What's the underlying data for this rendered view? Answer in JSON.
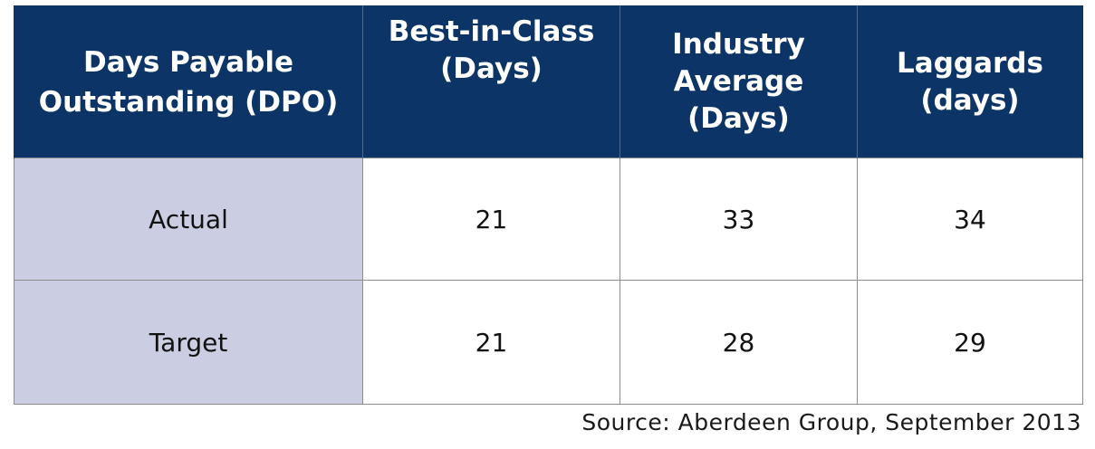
{
  "table": {
    "headers": [
      "Days Payable Outstanding (DPO)",
      "Best-in-Class (Days)",
      "Industry Average (Days)",
      "Laggards (days)"
    ],
    "rows": [
      {
        "label": "Actual",
        "values": [
          "21",
          "33",
          "34"
        ]
      },
      {
        "label": "Target",
        "values": [
          "21",
          "28",
          "29"
        ]
      }
    ]
  },
  "source": "Source: Aberdeen Group, September 2013",
  "colors": {
    "header_background": "#0d3466",
    "header_text": "#ffffff",
    "row_label_background": "#cbcee2"
  }
}
